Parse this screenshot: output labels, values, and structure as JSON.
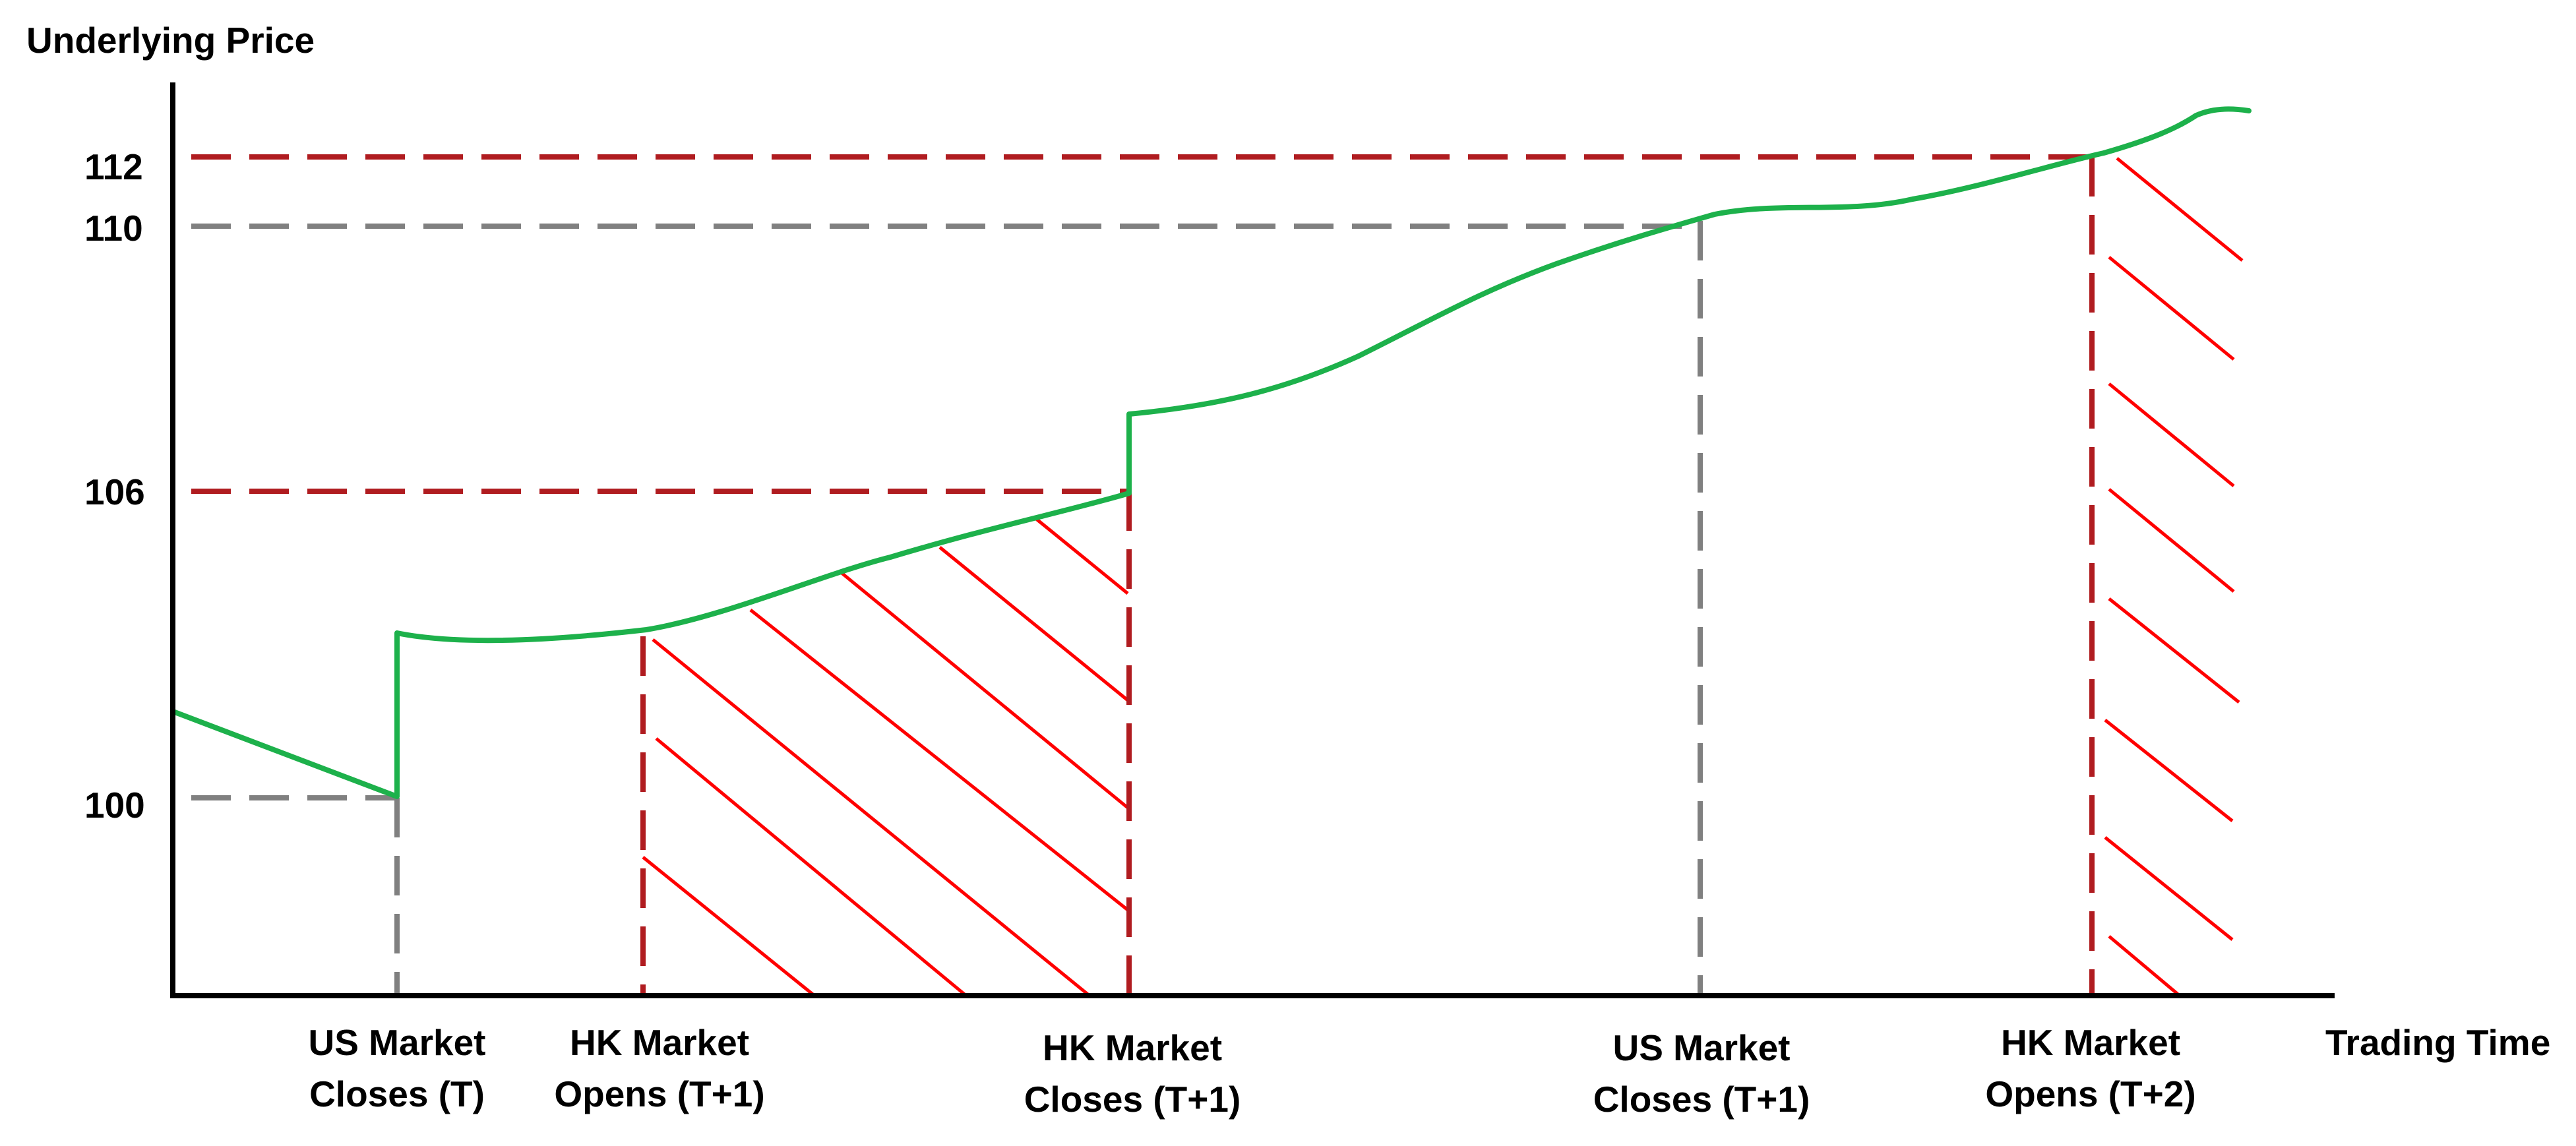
{
  "chart_data": {
    "type": "line",
    "ylabel": "Underlying Price",
    "xlabel": "Trading Time",
    "y_ticks": [
      {
        "id": "y-tick-112",
        "value": 112,
        "label": "112"
      },
      {
        "id": "y-tick-110",
        "value": 110,
        "label": "110"
      },
      {
        "id": "y-tick-106",
        "value": 106,
        "label": "106"
      },
      {
        "id": "y-tick-100",
        "value": 100,
        "label": "100"
      }
    ],
    "events": [
      {
        "id": "us-close-t",
        "line1": "US Market",
        "line2": "Closes (T)",
        "price": 100,
        "line_color": "#808080"
      },
      {
        "id": "hk-open-t1",
        "line1": "HK Market",
        "line2": "Opens (T+1)",
        "line_color": "#B01C20"
      },
      {
        "id": "hk-close-t1",
        "line1": "HK Market",
        "line2": "Closes (T+1)",
        "price": 106,
        "line_color": "#B01C20"
      },
      {
        "id": "us-close-t1",
        "line1": "US Market",
        "line2": "Closes (T+1)",
        "price": 110,
        "line_color": "#808080"
      },
      {
        "id": "hk-open-t2",
        "line1": "HK Market",
        "line2": "Opens (T+2)",
        "price": 112,
        "line_color": "#B01C20"
      }
    ],
    "series": [
      {
        "values_description_only": false,
        "color": "#1DB14B"
      }
    ],
    "colors": {
      "price_line": "#1DB14B",
      "hk_dashed": "#B01C20",
      "us_dashed": "#808080",
      "hatch": "#FF0000",
      "axis": "#000000"
    }
  }
}
